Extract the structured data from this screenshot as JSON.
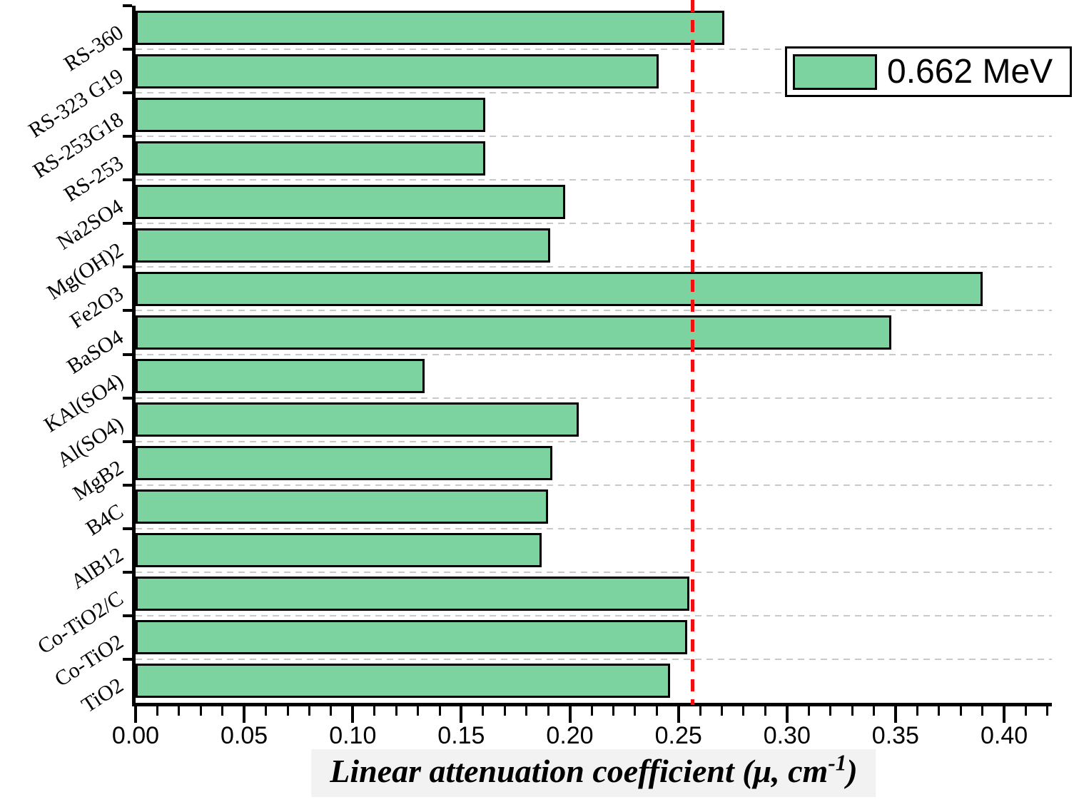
{
  "chart_data": {
    "type": "bar",
    "orientation": "horizontal",
    "legend": {
      "label": "0.662 MeV",
      "position": "top-right"
    },
    "xlabel_prefix": "Linear attenuation coefficient (μ, cm",
    "xlabel_sup": "-1",
    "xlabel_suffix": ")",
    "categories": [
      "RS-360",
      "RS-323 G19",
      "RS-253G18",
      "RS-253",
      "Na2SO4",
      "Mg(OH)2",
      "Fe2O3",
      "BaSO4",
      "KAl(SO4)",
      "Al(SO4)",
      "MgB2",
      "B4C",
      "AlB12",
      "Co-TiO2/C",
      "Co-TiO2",
      "TiO2"
    ],
    "values": [
      0.271,
      0.241,
      0.161,
      0.161,
      0.198,
      0.191,
      0.39,
      0.348,
      0.133,
      0.204,
      0.192,
      0.19,
      0.187,
      0.255,
      0.254,
      0.246
    ],
    "x_axis": {
      "min": 0,
      "max": 0.422,
      "major_tick_step": 0.05,
      "minor_tick_step": 0.01,
      "tick_labels": [
        "0.00",
        "0.05",
        "0.10",
        "0.15",
        "0.20",
        "0.25",
        "0.30",
        "0.35",
        "0.40"
      ]
    },
    "reference_line": {
      "value": 0.255,
      "style": "dashed",
      "color": "#F01010"
    },
    "grid": {
      "horizontal": true,
      "style": "dashed",
      "color": "#C9C9C9"
    },
    "colors": {
      "bar_fill": "#7CD3A0",
      "bar_border": "#000000",
      "axis": "#000000",
      "background": "#FFFFFF"
    }
  }
}
